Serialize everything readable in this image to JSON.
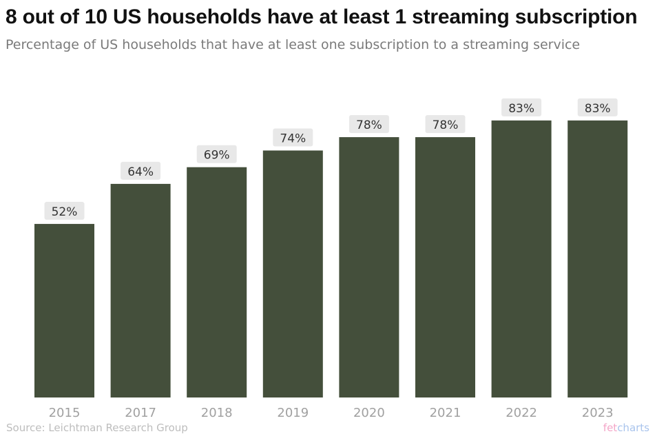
{
  "chart_data": {
    "type": "bar",
    "title": "8 out of 10 US households have at least 1 streaming subscription",
    "subtitle": "Percentage of US households that have at least one subscription to a streaming service",
    "categories": [
      "2015",
      "2017",
      "2018",
      "2019",
      "2020",
      "2021",
      "2022",
      "2023"
    ],
    "values": [
      52,
      64,
      69,
      74,
      78,
      78,
      83,
      83
    ],
    "value_labels": [
      "52%",
      "64%",
      "69%",
      "74%",
      "78%",
      "78%",
      "83%",
      "83%"
    ],
    "xlabel": "",
    "ylabel": "",
    "ylim": [
      0,
      100
    ],
    "grid": false,
    "bar_color": "#444f3b",
    "label_bg_color": "#e8e8e8"
  },
  "footer": {
    "source": "Source: Leichtman Research Group",
    "brand_part1": "fet",
    "brand_part2": "charts"
  }
}
